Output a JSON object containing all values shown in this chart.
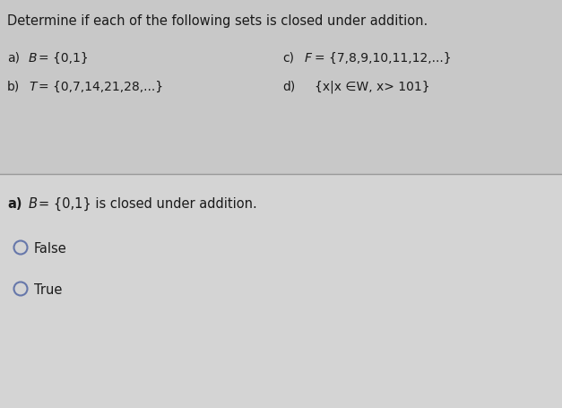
{
  "title": "Determine if each of the following sets is closed under addition.",
  "col1_a_label": "a)",
  "col1_a_italic": "B",
  "col1_a_text": "= {0,1}",
  "col1_b_label": "b)",
  "col1_b_italic": "T",
  "col1_b_text": "= {0,7,14,21,28,...}",
  "col2_c_label": "c)",
  "col2_c_italic": "F",
  "col2_c_text": "= {7,8,9,10,11,12,...}",
  "col2_d_label": "d)",
  "col2_d_text": "{x|x ∈W, x> 101}",
  "q_bold": "a)",
  "q_italic": "B",
  "q_rest": "= {0,1} is closed under addition.",
  "opt1": "False",
  "opt2": "True",
  "bg_top": "#c8c8c8",
  "bg_bottom": "#d4d4d4",
  "circle_color": "#6677aa",
  "text_color": "#1a1a1a",
  "divider_color": "#999999",
  "title_fontsize": 10.5,
  "body_fontsize": 10.0,
  "question_fontsize": 10.5,
  "option_fontsize": 10.5
}
